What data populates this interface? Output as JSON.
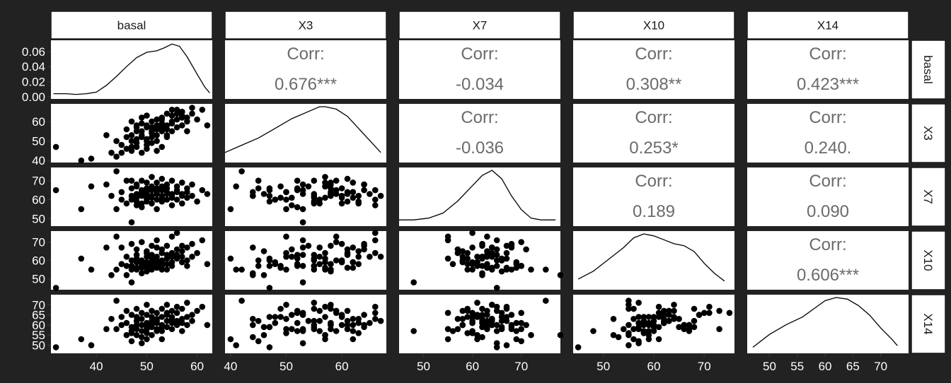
{
  "chart_data": {
    "type": "scatter",
    "title": "",
    "variables": [
      "basal",
      "X3",
      "X7",
      "X10",
      "X14"
    ],
    "corr_label": "Corr:",
    "correlations": [
      {
        "row": "basal",
        "col": "X3",
        "value": "0.676***"
      },
      {
        "row": "basal",
        "col": "X7",
        "value": "-0.034"
      },
      {
        "row": "basal",
        "col": "X10",
        "value": "0.308**"
      },
      {
        "row": "basal",
        "col": "X14",
        "value": "0.423***"
      },
      {
        "row": "X3",
        "col": "X7",
        "value": "-0.036"
      },
      {
        "row": "X3",
        "col": "X10",
        "value": "0.253*"
      },
      {
        "row": "X3",
        "col": "X14",
        "value": "0.240."
      },
      {
        "row": "X7",
        "col": "X10",
        "value": "0.189"
      },
      {
        "row": "X7",
        "col": "X14",
        "value": "0.090"
      },
      {
        "row": "X10",
        "col": "X14",
        "value": "0.606***"
      }
    ],
    "x_ranges": {
      "basal": [
        31,
        63
      ],
      "X3": [
        39,
        68
      ],
      "X7": [
        45,
        78
      ],
      "X10": [
        44,
        76
      ],
      "X14": [
        46,
        75
      ]
    },
    "y_ranges": {
      "basal": [
        -0.003,
        0.075
      ],
      "X3": [
        39,
        69
      ],
      "X7": [
        46,
        77
      ],
      "X10": [
        44,
        76
      ],
      "X14": [
        46,
        75
      ]
    },
    "y_ticks": {
      "basal": [
        "0.00",
        "0.02",
        "0.04",
        "0.06"
      ],
      "X3": [
        40,
        50,
        60
      ],
      "X7": [
        50,
        60,
        70
      ],
      "X10": [
        50,
        60,
        70
      ],
      "X14": [
        50,
        55,
        60,
        65,
        70
      ]
    },
    "x_ticks": {
      "basal": [
        40,
        50,
        60
      ],
      "X3": [
        40,
        50,
        60
      ],
      "X7": [
        50,
        60,
        70
      ],
      "X10": [
        50,
        60,
        70
      ],
      "X14": [
        50,
        55,
        60,
        65,
        70
      ]
    },
    "density": {
      "basal": [
        [
          31.5,
          0.004
        ],
        [
          34,
          0.004
        ],
        [
          36,
          0.003
        ],
        [
          38,
          0.004
        ],
        [
          40,
          0.006
        ],
        [
          42,
          0.015
        ],
        [
          44,
          0.027
        ],
        [
          46,
          0.04
        ],
        [
          48,
          0.052
        ],
        [
          50,
          0.059
        ],
        [
          52,
          0.061
        ],
        [
          53.5,
          0.065
        ],
        [
          55,
          0.07
        ],
        [
          56.5,
          0.067
        ],
        [
          58,
          0.053
        ],
        [
          60,
          0.03
        ],
        [
          61.5,
          0.013
        ],
        [
          62.5,
          0.005
        ]
      ],
      "X3": [
        [
          39,
          0.003
        ],
        [
          42,
          0.006
        ],
        [
          45,
          0.009
        ],
        [
          48,
          0.013
        ],
        [
          51,
          0.017
        ],
        [
          54,
          0.02
        ],
        [
          56,
          0.022
        ],
        [
          57,
          0.022
        ],
        [
          59,
          0.021
        ],
        [
          61,
          0.018
        ],
        [
          63,
          0.013
        ],
        [
          65,
          0.008
        ],
        [
          67,
          0.003
        ]
      ],
      "X7": [
        [
          45,
          0.002
        ],
        [
          48,
          0.002
        ],
        [
          51,
          0.003
        ],
        [
          54,
          0.006
        ],
        [
          57,
          0.013
        ],
        [
          60,
          0.022
        ],
        [
          62,
          0.028
        ],
        [
          64,
          0.031
        ],
        [
          66,
          0.026
        ],
        [
          68,
          0.016
        ],
        [
          70,
          0.008
        ],
        [
          72,
          0.003
        ],
        [
          74,
          0.002
        ],
        [
          77,
          0.002
        ]
      ],
      "X10": [
        [
          45,
          0.004
        ],
        [
          48,
          0.008
        ],
        [
          51,
          0.014
        ],
        [
          54,
          0.02
        ],
        [
          56,
          0.025
        ],
        [
          58,
          0.027
        ],
        [
          60,
          0.026
        ],
        [
          62,
          0.024
        ],
        [
          64,
          0.022
        ],
        [
          66,
          0.021
        ],
        [
          68,
          0.018
        ],
        [
          70,
          0.012
        ],
        [
          72,
          0.007
        ],
        [
          74,
          0.003
        ]
      ],
      "X14": [
        [
          47,
          0.002
        ],
        [
          50,
          0.01
        ],
        [
          53,
          0.016
        ],
        [
          56,
          0.021
        ],
        [
          58,
          0.026
        ],
        [
          60,
          0.031
        ],
        [
          62,
          0.033
        ],
        [
          64,
          0.032
        ],
        [
          66,
          0.028
        ],
        [
          68,
          0.022
        ],
        [
          70,
          0.014
        ],
        [
          72,
          0.007
        ],
        [
          73,
          0.003
        ]
      ]
    },
    "values": {
      "basal": [
        32,
        37,
        39,
        42,
        43,
        44,
        44,
        45,
        45,
        46,
        46,
        46,
        47,
        47,
        47,
        47,
        47,
        48,
        48,
        48,
        48,
        48,
        48,
        49,
        49,
        49,
        49,
        49,
        49,
        50,
        50,
        50,
        50,
        50,
        50,
        50,
        51,
        51,
        51,
        51,
        51,
        51,
        52,
        52,
        52,
        52,
        52,
        52,
        53,
        53,
        53,
        53,
        53,
        53,
        54,
        54,
        54,
        54,
        54,
        55,
        55,
        55,
        55,
        55,
        56,
        56,
        56,
        56,
        57,
        57,
        57,
        57,
        58,
        58,
        58,
        59,
        59,
        60,
        61,
        62
      ],
      "X3": [
        47,
        40,
        41,
        53,
        44,
        42,
        50,
        48,
        44,
        46,
        52,
        56,
        47,
        50,
        60,
        45,
        53,
        49,
        55,
        51,
        57,
        58,
        47,
        53,
        59,
        44,
        55,
        52,
        62,
        46,
        51,
        57,
        48,
        58,
        50,
        63,
        54,
        55,
        49,
        57,
        52,
        60,
        56,
        45,
        61,
        53,
        58,
        50,
        62,
        57,
        47,
        55,
        61,
        59,
        53,
        56,
        64,
        58,
        52,
        63,
        66,
        55,
        59,
        60,
        64,
        57,
        61,
        66,
        62,
        58,
        63,
        65,
        60,
        55,
        62,
        64,
        67,
        61,
        66,
        58
      ],
      "X7": [
        65,
        55,
        67,
        68,
        62,
        75,
        55,
        60,
        64,
        78,
        70,
        58,
        66,
        60,
        62,
        70,
        48,
        67,
        63,
        57,
        61,
        68,
        59,
        65,
        70,
        62,
        58,
        56,
        64,
        63,
        61,
        69,
        60,
        66,
        64,
        59,
        67,
        62,
        61,
        72,
        65,
        58,
        60,
        66,
        63,
        55,
        69,
        64,
        61,
        67,
        62,
        59,
        71,
        65,
        63,
        60,
        68,
        64,
        66,
        62,
        57,
        70,
        63,
        61,
        65,
        67,
        64,
        60,
        69,
        62,
        58,
        63,
        66,
        61,
        64,
        68,
        62,
        59,
        65,
        63
      ],
      "X10": [
        45,
        61,
        55,
        67,
        52,
        55,
        73,
        58,
        67,
        52,
        57,
        62,
        60,
        55,
        69,
        57,
        48,
        56,
        63,
        66,
        59,
        55,
        61,
        57,
        70,
        53,
        60,
        58,
        56,
        65,
        62,
        56,
        59,
        54,
        64,
        58,
        68,
        61,
        57,
        55,
        63,
        59,
        67,
        60,
        56,
        71,
        58,
        62,
        59,
        64,
        57,
        55,
        66,
        60,
        63,
        58,
        68,
        55,
        61,
        62,
        64,
        57,
        73,
        59,
        66,
        61,
        63,
        75,
        59,
        68,
        65,
        62,
        60,
        57,
        67,
        69,
        62,
        64,
        71,
        58
      ],
      "X14": [
        49,
        53,
        50,
        58,
        63,
        72,
        58,
        64,
        60,
        55,
        61,
        67,
        59,
        56,
        65,
        52,
        57,
        68,
        62,
        58,
        55,
        60,
        64,
        51,
        66,
        54,
        60,
        57,
        63,
        59,
        65,
        53,
        61,
        58,
        70,
        56,
        62,
        59,
        64,
        55,
        67,
        60,
        57,
        62,
        58,
        66,
        61,
        63,
        53,
        64,
        59,
        68,
        60,
        57,
        65,
        62,
        59,
        70,
        66,
        61,
        63,
        58,
        67,
        64,
        60,
        69,
        62,
        66,
        57,
        68,
        63,
        61,
        64,
        71,
        60,
        65,
        62,
        67,
        69,
        60
      ]
    }
  }
}
